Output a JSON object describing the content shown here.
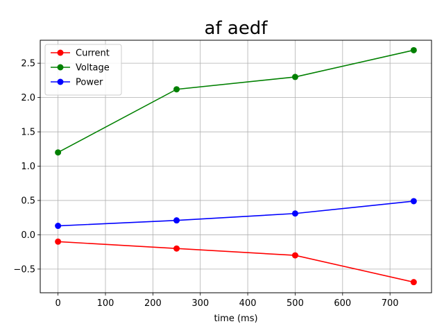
{
  "chart_data": {
    "type": "line",
    "title": "af aedf",
    "xlabel": "time (ms)",
    "ylabel": "",
    "x": [
      0,
      250,
      500,
      750
    ],
    "xlim": [
      -37.5,
      787.5
    ],
    "ylim": [
      -0.845,
      2.835
    ],
    "xticks": [
      0,
      100,
      200,
      300,
      400,
      500,
      600,
      700
    ],
    "yticks": [
      -0.5,
      0.0,
      0.5,
      1.0,
      1.5,
      2.0,
      2.5
    ],
    "xtick_labels": [
      "0",
      "100",
      "200",
      "300",
      "400",
      "500",
      "600",
      "700"
    ],
    "ytick_labels": [
      "−0.5",
      "0.0",
      "0.5",
      "1.0",
      "1.5",
      "2.0",
      "2.5"
    ],
    "grid": true,
    "legend_position": "top-left",
    "series": [
      {
        "name": "Current",
        "color": "#ff0000",
        "values": [
          -0.1,
          -0.2,
          -0.3,
          -0.69
        ]
      },
      {
        "name": "Voltage",
        "color": "#008000",
        "values": [
          1.2,
          2.12,
          2.3,
          2.69
        ]
      },
      {
        "name": "Power",
        "color": "#0000ff",
        "values": [
          0.13,
          0.21,
          0.31,
          0.49
        ]
      }
    ]
  }
}
